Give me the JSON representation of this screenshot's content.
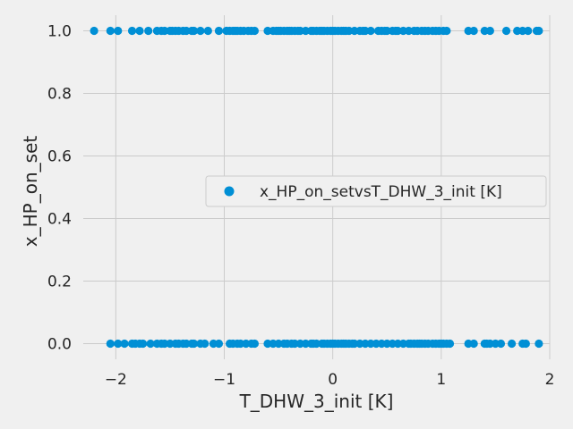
{
  "chart_data": {
    "type": "scatter",
    "title": "",
    "xlabel": "T_DHW_3_init [K]",
    "ylabel": "x_HP_on_set",
    "xlim": [
      -2.3,
      2.0
    ],
    "ylim": [
      -0.05,
      1.05
    ],
    "xticks": [
      -2,
      -1,
      0,
      1,
      2
    ],
    "xtick_labels": [
      "−2",
      "−1",
      "0",
      "1",
      "2"
    ],
    "yticks": [
      0.0,
      0.2,
      0.4,
      0.6,
      0.8,
      1.0
    ],
    "ytick_labels": [
      "0.0",
      "0.2",
      "0.4",
      "0.6",
      "0.8",
      "1.0"
    ],
    "grid": true,
    "legend_position": "center-right",
    "series": [
      {
        "name": "x_HP_on_setvsT_DHW_3_init [K]",
        "color": "#008fd5",
        "x": [
          -2.2,
          -2.05,
          -1.98,
          -1.85,
          -1.78,
          -1.7,
          -1.62,
          -1.58,
          -1.55,
          -1.5,
          -1.48,
          -1.45,
          -1.42,
          -1.38,
          -1.35,
          -1.3,
          -1.28,
          -1.22,
          -1.15,
          -1.05,
          -0.98,
          -0.95,
          -0.92,
          -0.9,
          -0.88,
          -0.85,
          -0.82,
          -0.78,
          -0.75,
          -0.72,
          -0.6,
          -0.55,
          -0.52,
          -0.5,
          -0.48,
          -0.45,
          -0.42,
          -0.4,
          -0.38,
          -0.35,
          -0.32,
          -0.3,
          -0.25,
          -0.2,
          -0.18,
          -0.15,
          -0.12,
          -0.1,
          -0.08,
          -0.05,
          -0.02,
          0.0,
          0.02,
          0.05,
          0.08,
          0.1,
          0.12,
          0.15,
          0.2,
          0.25,
          0.28,
          0.3,
          0.35,
          0.42,
          0.45,
          0.48,
          0.5,
          0.55,
          0.58,
          0.6,
          0.65,
          0.7,
          0.75,
          0.78,
          0.82,
          0.85,
          0.88,
          0.92,
          0.95,
          0.98,
          1.02,
          1.05,
          1.25,
          1.3,
          1.4,
          1.45,
          1.6,
          1.7,
          1.75,
          1.8,
          1.88,
          1.9,
          -2.05,
          -1.98,
          -1.92,
          -1.85,
          -1.82,
          -1.78,
          -1.75,
          -1.68,
          -1.62,
          -1.58,
          -1.55,
          -1.5,
          -1.45,
          -1.42,
          -1.38,
          -1.35,
          -1.3,
          -1.28,
          -1.22,
          -1.18,
          -1.1,
          -1.05,
          -0.95,
          -0.92,
          -0.88,
          -0.85,
          -0.8,
          -0.75,
          -0.72,
          -0.6,
          -0.55,
          -0.5,
          -0.45,
          -0.42,
          -0.38,
          -0.35,
          -0.3,
          -0.25,
          -0.2,
          -0.18,
          -0.15,
          -0.1,
          -0.08,
          -0.05,
          -0.02,
          0.0,
          0.02,
          0.05,
          0.08,
          0.1,
          0.12,
          0.15,
          0.18,
          0.2,
          0.25,
          0.3,
          0.35,
          0.4,
          0.45,
          0.5,
          0.55,
          0.6,
          0.65,
          0.7,
          0.72,
          0.75,
          0.78,
          0.8,
          0.82,
          0.85,
          0.88,
          0.92,
          0.95,
          0.98,
          1.0,
          1.02,
          1.05,
          1.08,
          1.25,
          1.3,
          1.4,
          1.42,
          1.45,
          1.5,
          1.55,
          1.65,
          1.75,
          1.78,
          1.9
        ],
        "y": [
          1,
          1,
          1,
          1,
          1,
          1,
          1,
          1,
          1,
          1,
          1,
          1,
          1,
          1,
          1,
          1,
          1,
          1,
          1,
          1,
          1,
          1,
          1,
          1,
          1,
          1,
          1,
          1,
          1,
          1,
          1,
          1,
          1,
          1,
          1,
          1,
          1,
          1,
          1,
          1,
          1,
          1,
          1,
          1,
          1,
          1,
          1,
          1,
          1,
          1,
          1,
          1,
          1,
          1,
          1,
          1,
          1,
          1,
          1,
          1,
          1,
          1,
          1,
          1,
          1,
          1,
          1,
          1,
          1,
          1,
          1,
          1,
          1,
          1,
          1,
          1,
          1,
          1,
          1,
          1,
          1,
          1,
          1,
          1,
          1,
          1,
          1,
          1,
          1,
          1,
          1,
          1,
          0,
          0,
          0,
          0,
          0,
          0,
          0,
          0,
          0,
          0,
          0,
          0,
          0,
          0,
          0,
          0,
          0,
          0,
          0,
          0,
          0,
          0,
          0,
          0,
          0,
          0,
          0,
          0,
          0,
          0,
          0,
          0,
          0,
          0,
          0,
          0,
          0,
          0,
          0,
          0,
          0,
          0,
          0,
          0,
          0,
          0,
          0,
          0,
          0,
          0,
          0,
          0,
          0,
          0,
          0,
          0,
          0,
          0,
          0,
          0,
          0,
          0,
          0,
          0,
          0,
          0,
          0,
          0,
          0,
          0,
          0,
          0,
          0,
          0,
          0,
          0,
          0,
          0,
          0,
          0,
          0,
          0,
          0,
          0,
          0,
          0,
          0,
          0,
          0
        ]
      }
    ]
  }
}
